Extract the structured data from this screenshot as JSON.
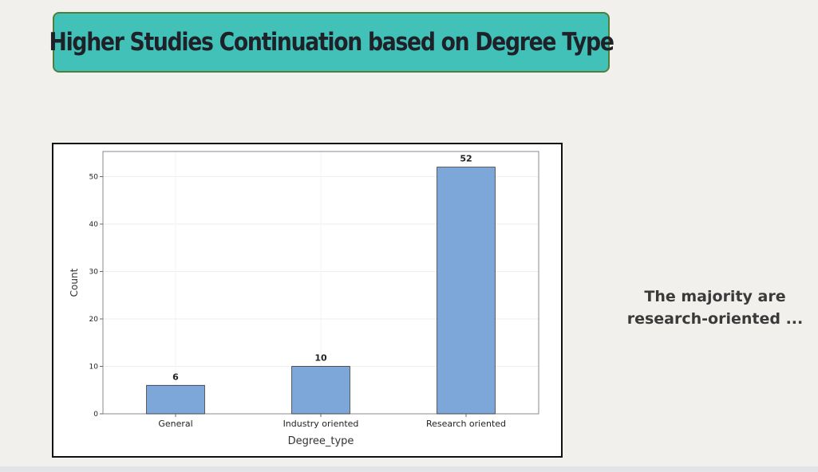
{
  "title": "Higher Studies Continuation based on Degree Type",
  "note": {
    "line1": "The majority are",
    "line2": "research-oriented ..."
  },
  "colors": {
    "background": "#f1f0ec",
    "banner": "#42c1b9",
    "banner_border": "#4f7f3a",
    "bar": "#7da6d9",
    "bar_edge": "#333333"
  },
  "chart_data": {
    "type": "bar",
    "categories": [
      "General",
      "Industry oriented",
      "Research oriented"
    ],
    "values": [
      6,
      10,
      52
    ],
    "data_labels": [
      "6",
      "10",
      "52"
    ],
    "xlabel": "Degree_type",
    "ylabel": "Count",
    "ylim": [
      0,
      55.3
    ],
    "yticks": [
      0,
      10,
      20,
      30,
      40,
      50
    ],
    "grid": true
  }
}
